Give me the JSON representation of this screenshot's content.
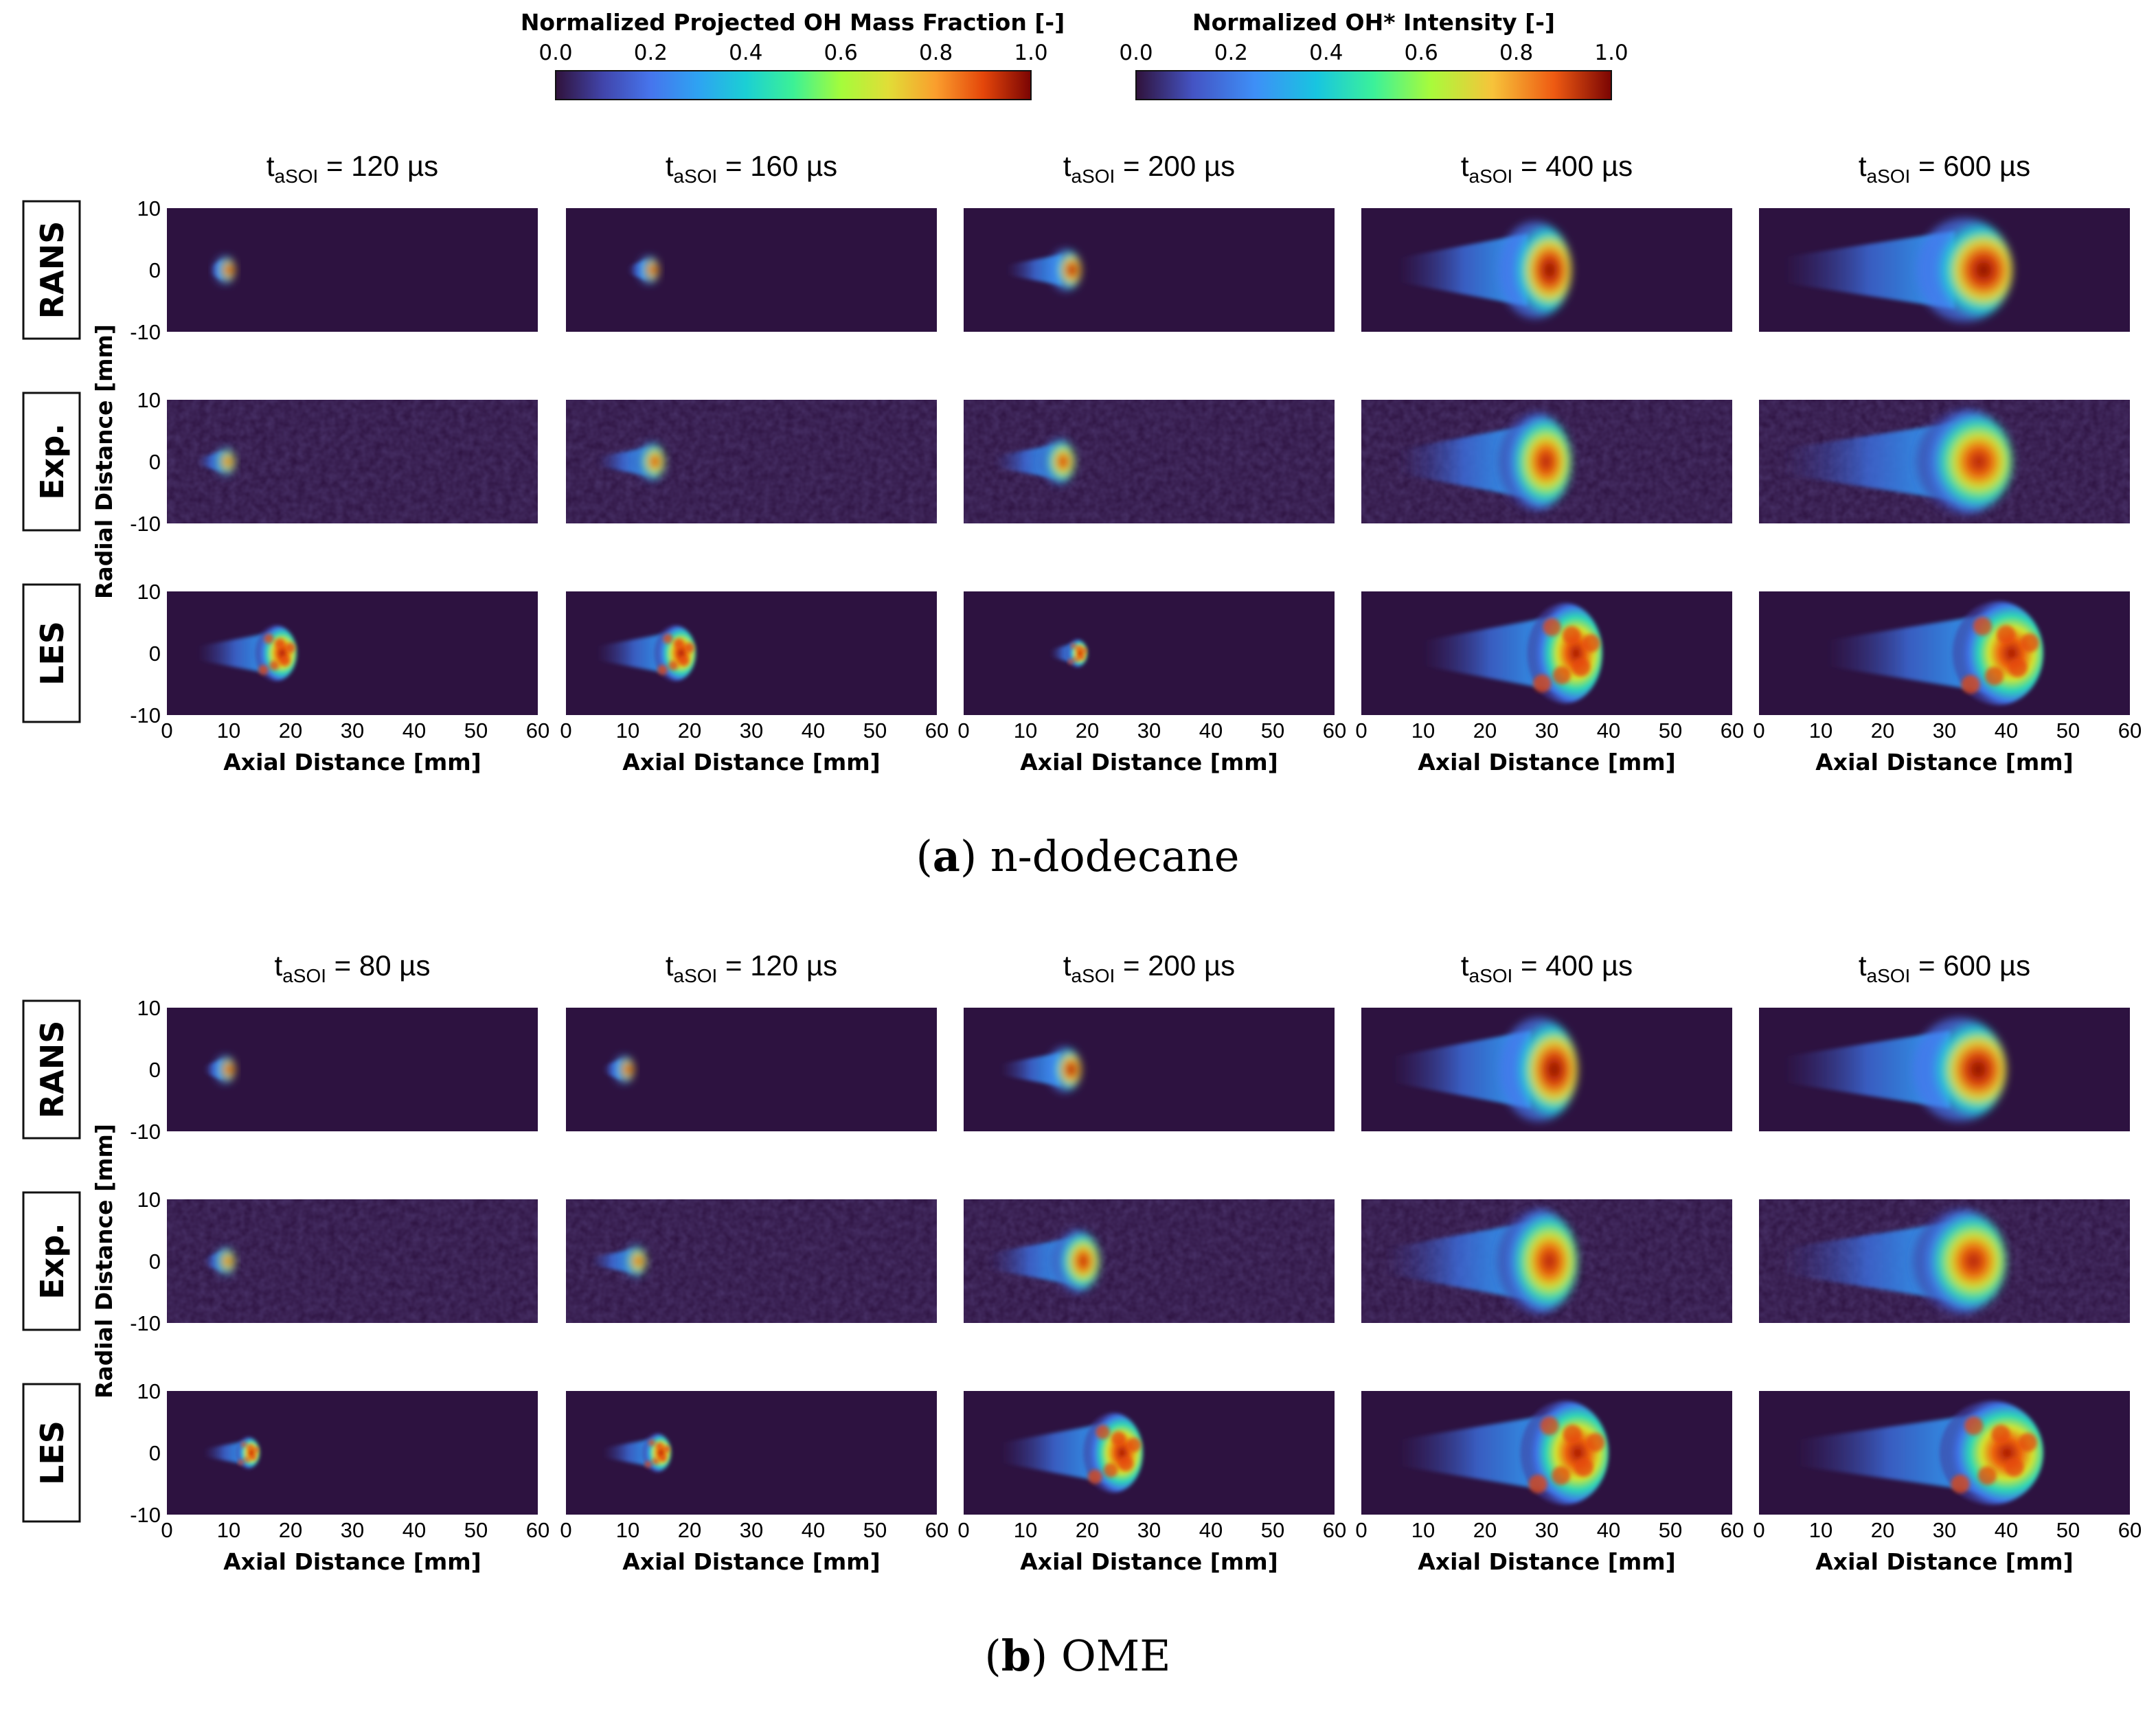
{
  "colorbars": [
    {
      "title": "Normalized Projected OH Mass Fraction [-]",
      "ticks": [
        "0.0",
        "0.2",
        "0.4",
        "0.6",
        "0.8",
        "1.0"
      ],
      "colormap": "turbo-mass"
    },
    {
      "title": "Normalized OH* Intensity [-]",
      "ticks": [
        "0.0",
        "0.2",
        "0.4",
        "0.6",
        "0.8",
        "1.0"
      ],
      "colormap": "turbo-intensity"
    }
  ],
  "x_axis": {
    "label": "Axial Distance [mm]",
    "ticks": [
      "0",
      "10",
      "20",
      "30",
      "40",
      "50",
      "60"
    ],
    "range": [
      0,
      60
    ]
  },
  "y_axis": {
    "label": "Radial Distance [mm]",
    "ticks": [
      "10",
      "0",
      "-10"
    ],
    "range": [
      -10,
      10
    ]
  },
  "row_labels": [
    "RANS",
    "Exp.",
    "LES"
  ],
  "time_label": {
    "prefix": "t",
    "subscript": "aSOI",
    "unit": "µs"
  },
  "panels": [
    {
      "id": "a",
      "caption_letter": "a",
      "caption_text": "n-dodecane",
      "times": [
        "120",
        "160",
        "200",
        "400",
        "600"
      ]
    },
    {
      "id": "b",
      "caption_letter": "b",
      "caption_text": "OME",
      "times": [
        "80",
        "120",
        "200",
        "400",
        "600"
      ]
    }
  ],
  "colors": {
    "background_field": "#2d1240",
    "frame": "#111111"
  },
  "chart_data": [
    {
      "type": "heatmap",
      "title": "(a) n-dodecane",
      "xlabel": "Axial Distance [mm]",
      "ylabel": "Radial Distance [mm]",
      "xlim": [
        0,
        60
      ],
      "ylim": [
        -10,
        10
      ],
      "rows": [
        "RANS",
        "Exp.",
        "LES"
      ],
      "times_us": [
        120,
        160,
        200,
        400,
        600
      ],
      "flame_extent_mm": {
        "RANS": [
          [
            7,
            11
          ],
          [
            10,
            15
          ],
          [
            7,
            19
          ],
          [
            6,
            34
          ],
          [
            4,
            41
          ]
        ],
        "Exp.": [
          [
            5,
            11
          ],
          [
            5,
            16
          ],
          [
            5,
            18
          ],
          [
            6,
            34
          ],
          [
            4,
            41
          ]
        ],
        "LES": [
          [
            5,
            21
          ],
          [
            5,
            21
          ],
          [
            14,
            20
          ],
          [
            10,
            39
          ],
          [
            11,
            46
          ]
        ]
      }
    },
    {
      "type": "heatmap",
      "title": "(b) OME",
      "xlabel": "Axial Distance [mm]",
      "ylabel": "Radial Distance [mm]",
      "xlim": [
        0,
        60
      ],
      "ylim": [
        -10,
        10
      ],
      "rows": [
        "RANS",
        "Exp.",
        "LES"
      ],
      "times_us": [
        80,
        120,
        200,
        400,
        600
      ],
      "flame_extent_mm": {
        "RANS": [
          [
            6,
            11
          ],
          [
            6,
            11
          ],
          [
            6,
            19
          ],
          [
            5,
            35
          ],
          [
            4,
            40
          ]
        ],
        "Exp.": [
          [
            6,
            11
          ],
          [
            4,
            13
          ],
          [
            4,
            22
          ],
          [
            4,
            35
          ],
          [
            4,
            40
          ]
        ],
        "LES": [
          [
            6,
            15
          ],
          [
            6,
            17
          ],
          [
            6,
            29
          ],
          [
            6,
            40
          ],
          [
            6,
            46
          ]
        ]
      }
    }
  ]
}
